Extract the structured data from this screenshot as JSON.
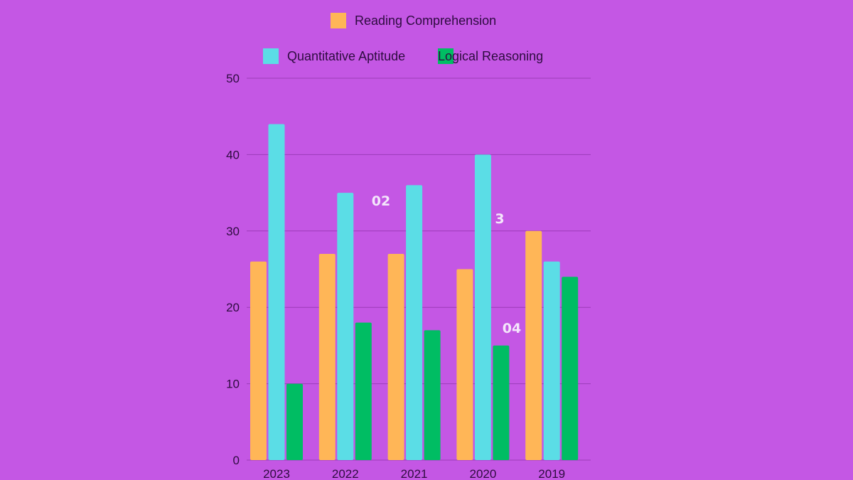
{
  "chart_data": {
    "type": "bar",
    "title": "",
    "xlabel": "",
    "ylabel": "",
    "categories": [
      "2023",
      "2022",
      "2021",
      "2020",
      "2019"
    ],
    "series": [
      {
        "name": "Reading Comprehension",
        "color": "#ffb657",
        "values": [
          26,
          27,
          27,
          25,
          30
        ]
      },
      {
        "name": "Quantitative Aptitude",
        "color": "#5bdde6",
        "values": [
          44,
          35,
          36,
          40,
          26
        ]
      },
      {
        "name": "Logical Reasoning",
        "color": "#00bd63",
        "values": [
          10,
          18,
          17,
          15,
          24
        ]
      }
    ],
    "ylim": [
      0,
      50
    ],
    "yticks": [
      "0",
      "10",
      "20",
      "30",
      "40",
      "50"
    ],
    "grid": true,
    "legend_placement": "top",
    "annotations": [
      "02",
      "3",
      "04"
    ]
  },
  "colors": {
    "background": "#c457e4",
    "grid": "#9b3cb8",
    "text": "#2e0b40"
  }
}
